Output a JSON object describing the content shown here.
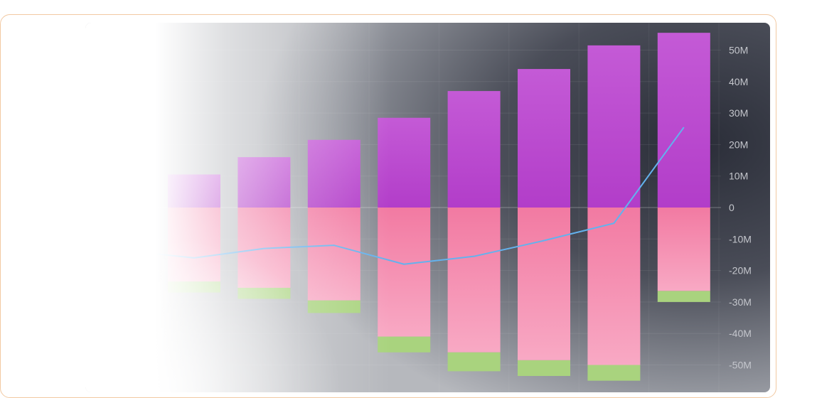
{
  "chart_data": {
    "type": "bar",
    "stacked": true,
    "title": "",
    "xlabel": "",
    "ylabel": "",
    "ylim": [
      -53,
      55
    ],
    "y_ticks": [
      "50M",
      "40M",
      "30M",
      "20M",
      "10M",
      "0",
      "-10M",
      "-20M",
      "-30M",
      "-40M",
      "-50M"
    ],
    "y_tick_values": [
      50,
      40,
      30,
      20,
      10,
      0,
      -10,
      -20,
      -30,
      -40,
      -50
    ],
    "y_axis_position": "right",
    "grid": true,
    "legend": "none",
    "categories": [
      "",
      "",
      "",
      "",
      "",
      "",
      "",
      ""
    ],
    "series": [
      {
        "kind": "bar",
        "values": [
          10.5,
          16,
          21.5,
          28.5,
          37,
          44,
          51.5,
          55.5
        ],
        "color": "#b93ccc"
      },
      {
        "kind": "bar",
        "values": [
          -23.5,
          -25.5,
          -29.5,
          -41,
          -46,
          -48.5,
          -50,
          -26.5
        ],
        "color": "#f47ea5"
      },
      {
        "kind": "bar",
        "values": [
          -3.5,
          -3.5,
          -4,
          -5,
          -6,
          -5,
          -5,
          -3.5
        ],
        "color": "#a9d37e"
      },
      {
        "kind": "line",
        "values": [
          -16,
          -13,
          -12,
          -18,
          -15.5,
          -10.5,
          -5,
          25.5
        ],
        "color": "#63b2ee"
      }
    ]
  }
}
